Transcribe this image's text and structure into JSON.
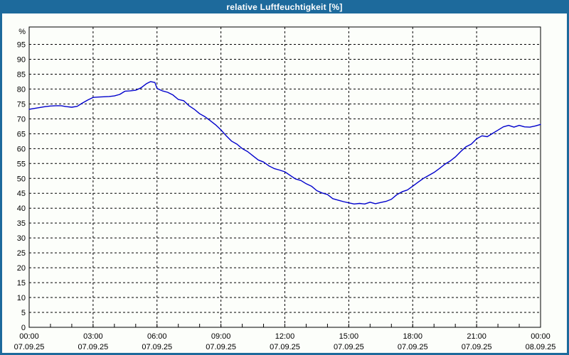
{
  "window": {
    "title": "relative Luftfeuchtigkeit [%]"
  },
  "colors": {
    "titlebar_bg": "#1d6a9c",
    "window_border": "#1d6a9c",
    "plot_bg": "#fcfefa",
    "line": "#0000cc",
    "grid": "#000000",
    "text": "#000000"
  },
  "chart_data": {
    "type": "line",
    "title": "relative Luftfeuchtigkeit [%]",
    "ylabel": "%",
    "unit_label": "%",
    "ylim": [
      0,
      100
    ],
    "xlim_hours": [
      0,
      24
    ],
    "grid": "dashed",
    "legend": "none",
    "y_ticks": [
      0,
      5,
      10,
      15,
      20,
      25,
      30,
      35,
      40,
      45,
      50,
      55,
      60,
      65,
      70,
      75,
      80,
      85,
      90,
      95
    ],
    "x_ticks": [
      {
        "hour": 0,
        "time": "00:00",
        "date": "07.09.25"
      },
      {
        "hour": 3,
        "time": "03:00",
        "date": "07.09.25"
      },
      {
        "hour": 6,
        "time": "06:00",
        "date": "07.09.25"
      },
      {
        "hour": 9,
        "time": "09:00",
        "date": "07.09.25"
      },
      {
        "hour": 12,
        "time": "12:00",
        "date": "07.09.25"
      },
      {
        "hour": 15,
        "time": "15:00",
        "date": "07.09.25"
      },
      {
        "hour": 18,
        "time": "18:00",
        "date": "07.09.25"
      },
      {
        "hour": 21,
        "time": "21:00",
        "date": "07.09.25"
      },
      {
        "hour": 24,
        "time": "00:00",
        "date": "08.09.25"
      }
    ],
    "minor_x_tick_interval_hours": 1,
    "series": [
      {
        "name": "relative Luftfeuchtigkeit",
        "color": "#0000cc",
        "points": [
          [
            0,
            73.2
          ],
          [
            0.25,
            73.5
          ],
          [
            0.5,
            73.8
          ],
          [
            0.75,
            74.1
          ],
          [
            1,
            74.3
          ],
          [
            1.25,
            74.4
          ],
          [
            1.5,
            74.4
          ],
          [
            1.75,
            74.1
          ],
          [
            2,
            73.9
          ],
          [
            2.25,
            74.2
          ],
          [
            2.5,
            75.3
          ],
          [
            2.75,
            76.3
          ],
          [
            3,
            77.2
          ],
          [
            3.25,
            77.3
          ],
          [
            3.5,
            77.4
          ],
          [
            3.75,
            77.5
          ],
          [
            4,
            77.7
          ],
          [
            4.25,
            78.2
          ],
          [
            4.5,
            79.3
          ],
          [
            4.75,
            79.4
          ],
          [
            5,
            79.6
          ],
          [
            5.25,
            80.4
          ],
          [
            5.5,
            81.8
          ],
          [
            5.7,
            82.5
          ],
          [
            5.9,
            82.2
          ],
          [
            6,
            80.2
          ],
          [
            6.25,
            79.4
          ],
          [
            6.5,
            78.9
          ],
          [
            6.75,
            78.0
          ],
          [
            7,
            76.5
          ],
          [
            7.25,
            76.1
          ],
          [
            7.5,
            74.4
          ],
          [
            7.75,
            73.2
          ],
          [
            8,
            71.7
          ],
          [
            8.25,
            70.7
          ],
          [
            8.5,
            69.4
          ],
          [
            8.75,
            68.0
          ],
          [
            9,
            66.3
          ],
          [
            9.25,
            64.3
          ],
          [
            9.5,
            62.5
          ],
          [
            9.75,
            61.5
          ],
          [
            10,
            60.0
          ],
          [
            10.25,
            59.0
          ],
          [
            10.5,
            57.6
          ],
          [
            10.75,
            56.2
          ],
          [
            11,
            55.5
          ],
          [
            11.25,
            54.2
          ],
          [
            11.5,
            53.3
          ],
          [
            11.75,
            52.8
          ],
          [
            12,
            52.2
          ],
          [
            12.25,
            51.0
          ],
          [
            12.5,
            49.8
          ],
          [
            12.75,
            49.3
          ],
          [
            13,
            48.2
          ],
          [
            13.25,
            47.4
          ],
          [
            13.5,
            45.9
          ],
          [
            13.75,
            45.1
          ],
          [
            14,
            44.6
          ],
          [
            14.25,
            43.2
          ],
          [
            14.5,
            42.7
          ],
          [
            14.75,
            42.2
          ],
          [
            15,
            41.8
          ],
          [
            15.25,
            41.4
          ],
          [
            15.5,
            41.6
          ],
          [
            15.75,
            41.4
          ],
          [
            16,
            42.0
          ],
          [
            16.25,
            41.5
          ],
          [
            16.5,
            41.9
          ],
          [
            16.75,
            42.3
          ],
          [
            17,
            43.0
          ],
          [
            17.25,
            44.5
          ],
          [
            17.5,
            45.5
          ],
          [
            17.75,
            46.1
          ],
          [
            18,
            47.4
          ],
          [
            18.25,
            48.7
          ],
          [
            18.5,
            50.0
          ],
          [
            18.75,
            51.0
          ],
          [
            19,
            52.0
          ],
          [
            19.25,
            53.3
          ],
          [
            19.5,
            54.7
          ],
          [
            19.75,
            55.8
          ],
          [
            20,
            57.2
          ],
          [
            20.25,
            59.0
          ],
          [
            20.5,
            60.6
          ],
          [
            20.75,
            61.5
          ],
          [
            21,
            63.3
          ],
          [
            21.25,
            64.3
          ],
          [
            21.5,
            64.0
          ],
          [
            21.75,
            65.1
          ],
          [
            22,
            66.2
          ],
          [
            22.25,
            67.3
          ],
          [
            22.5,
            67.8
          ],
          [
            22.75,
            67.2
          ],
          [
            23,
            67.8
          ],
          [
            23.25,
            67.3
          ],
          [
            23.5,
            67.2
          ],
          [
            23.75,
            67.6
          ],
          [
            24,
            68.1
          ]
        ]
      }
    ]
  }
}
